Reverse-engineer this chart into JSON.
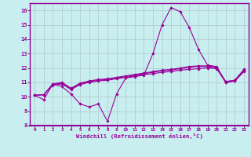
{
  "xlabel": "Windchill (Refroidissement éolien,°C)",
  "background_color": "#c8eef0",
  "grid_color": "#b0c8cc",
  "line_color": "#990099",
  "axis_color": "#990099",
  "xlim": [
    -0.5,
    23.5
  ],
  "ylim": [
    8,
    16.5
  ],
  "yticks": [
    8,
    9,
    10,
    11,
    12,
    13,
    14,
    15,
    16
  ],
  "xticks": [
    0,
    1,
    2,
    3,
    4,
    5,
    6,
    7,
    8,
    9,
    10,
    11,
    12,
    13,
    14,
    15,
    16,
    17,
    18,
    19,
    20,
    21,
    22,
    23
  ],
  "series": [
    [
      10.1,
      9.8,
      10.9,
      10.7,
      10.2,
      9.5,
      9.3,
      9.5,
      8.3,
      10.2,
      11.3,
      11.4,
      11.5,
      13.0,
      15.0,
      16.2,
      15.9,
      14.8,
      13.3,
      12.2,
      12.1,
      11.0,
      11.1,
      11.8
    ],
    [
      10.1,
      10.15,
      10.8,
      10.9,
      10.5,
      10.85,
      11.0,
      11.1,
      11.15,
      11.25,
      11.35,
      11.45,
      11.55,
      11.6,
      11.7,
      11.75,
      11.85,
      11.9,
      11.95,
      12.0,
      11.95,
      11.0,
      11.1,
      11.75
    ],
    [
      10.1,
      10.15,
      10.85,
      10.95,
      10.55,
      10.9,
      11.05,
      11.15,
      11.2,
      11.3,
      11.4,
      11.5,
      11.6,
      11.7,
      11.8,
      11.85,
      11.95,
      12.05,
      12.1,
      12.1,
      12.0,
      11.05,
      11.15,
      11.85
    ],
    [
      10.1,
      10.15,
      10.9,
      11.0,
      10.6,
      10.95,
      11.1,
      11.2,
      11.25,
      11.35,
      11.45,
      11.55,
      11.65,
      11.75,
      11.85,
      11.9,
      12.0,
      12.1,
      12.15,
      12.15,
      12.05,
      11.05,
      11.15,
      11.9
    ]
  ]
}
